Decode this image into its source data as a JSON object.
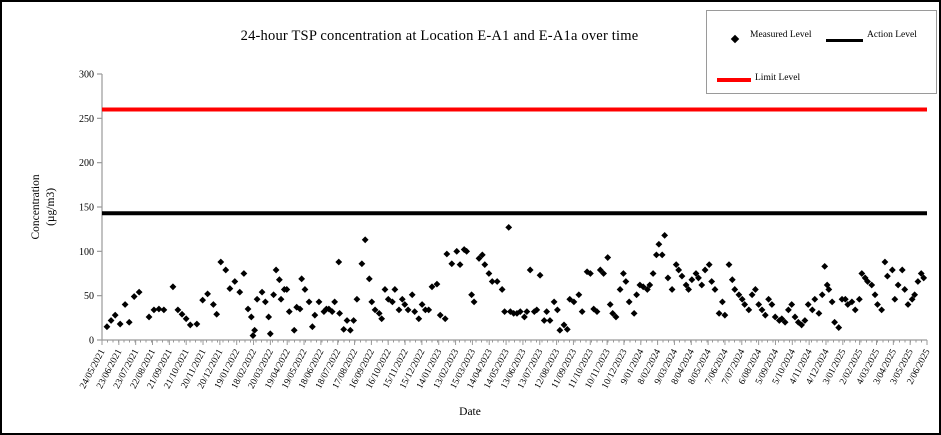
{
  "chart_data": {
    "type": "scatter",
    "title": "24-hour TSP concentration at Location E-A1 and E-A1a over time",
    "xlabel": "Date",
    "ylabel": "Concentration (µg/m3)",
    "ylabel_lines": [
      "Concentration",
      "(µg/m3)"
    ],
    "ylim": [
      0,
      300
    ],
    "yticks": [
      0,
      50,
      100,
      150,
      200,
      250,
      300
    ],
    "grid": false,
    "legend_position": "top-right",
    "axis_color": "#9a9a9a",
    "x_tick_labels": [
      "24/05/2021",
      "23/06/2021",
      "23/07/2021",
      "22/08/2021",
      "21/09/2021",
      "21/10/2021",
      "20/11/2021",
      "20/12/2021",
      "19/01/2022",
      "18/02/2022",
      "20/03/2022",
      "19/04/2022",
      "19/05/2022",
      "18/06/2022",
      "18/07/2022",
      "17/08/2022",
      "16/09/2022",
      "16/10/2022",
      "15/11/2022",
      "15/12/2022",
      "14/01/2023",
      "13/02/2023",
      "15/03/2023",
      "14/04/2023",
      "14/05/2023",
      "13/06/2023",
      "13/07/2023",
      "12/08/2023",
      "11/09/2023",
      "11/10/2023",
      "10/11/2023",
      "10/12/2023",
      "9/01/2024",
      "8/02/2024",
      "9/03/2024",
      "8/04/2024",
      "8/05/2024",
      "7/06/2024",
      "7/07/2024",
      "6/08/2024",
      "5/09/2024",
      "5/10/2024",
      "4/11/2024",
      "4/12/2024",
      "3/01/2025",
      "2/02/2025",
      "4/03/2025",
      "3/04/2025",
      "3/05/2025",
      "2/06/2025"
    ],
    "series": [
      {
        "name": "Measured Level",
        "type": "scatter",
        "marker": "diamond",
        "color": "#000000",
        "points": [
          [
            0.006,
            15
          ],
          [
            0.011,
            22
          ],
          [
            0.016,
            28
          ],
          [
            0.022,
            18
          ],
          [
            0.028,
            40
          ],
          [
            0.033,
            20
          ],
          [
            0.039,
            49
          ],
          [
            0.045,
            54
          ],
          [
            0.057,
            26
          ],
          [
            0.063,
            34
          ],
          [
            0.069,
            35
          ],
          [
            0.075,
            34
          ],
          [
            0.086,
            60
          ],
          [
            0.092,
            34
          ],
          [
            0.097,
            29
          ],
          [
            0.102,
            24
          ],
          [
            0.107,
            17
          ],
          [
            0.115,
            18
          ],
          [
            0.122,
            45
          ],
          [
            0.128,
            52
          ],
          [
            0.135,
            40
          ],
          [
            0.139,
            29
          ],
          [
            0.144,
            88
          ],
          [
            0.15,
            79
          ],
          [
            0.155,
            58
          ],
          [
            0.161,
            66
          ],
          [
            0.167,
            54
          ],
          [
            0.172,
            75
          ],
          [
            0.177,
            35
          ],
          [
            0.181,
            26
          ],
          [
            0.183,
            5
          ],
          [
            0.185,
            11
          ],
          [
            0.188,
            46
          ],
          [
            0.194,
            54
          ],
          [
            0.198,
            43
          ],
          [
            0.202,
            26
          ],
          [
            0.204,
            7
          ],
          [
            0.208,
            51
          ],
          [
            0.211,
            79
          ],
          [
            0.215,
            68
          ],
          [
            0.217,
            46
          ],
          [
            0.221,
            57
          ],
          [
            0.224,
            57
          ],
          [
            0.227,
            32
          ],
          [
            0.233,
            11
          ],
          [
            0.236,
            37
          ],
          [
            0.24,
            35
          ],
          [
            0.242,
            69
          ],
          [
            0.246,
            57
          ],
          [
            0.251,
            43
          ],
          [
            0.255,
            15
          ],
          [
            0.258,
            28
          ],
          [
            0.263,
            43
          ],
          [
            0.269,
            32
          ],
          [
            0.272,
            35
          ],
          [
            0.275,
            35
          ],
          [
            0.279,
            32
          ],
          [
            0.282,
            43
          ],
          [
            0.287,
            88
          ],
          [
            0.288,
            30
          ],
          [
            0.293,
            12
          ],
          [
            0.297,
            22
          ],
          [
            0.301,
            11
          ],
          [
            0.305,
            22
          ],
          [
            0.309,
            46
          ],
          [
            0.315,
            86
          ],
          [
            0.319,
            113
          ],
          [
            0.324,
            69
          ],
          [
            0.327,
            43
          ],
          [
            0.331,
            34
          ],
          [
            0.336,
            30
          ],
          [
            0.339,
            24
          ],
          [
            0.343,
            57
          ],
          [
            0.347,
            46
          ],
          [
            0.352,
            43
          ],
          [
            0.355,
            57
          ],
          [
            0.36,
            34
          ],
          [
            0.364,
            46
          ],
          [
            0.367,
            40
          ],
          [
            0.371,
            34
          ],
          [
            0.376,
            51
          ],
          [
            0.379,
            32
          ],
          [
            0.384,
            24
          ],
          [
            0.388,
            40
          ],
          [
            0.392,
            34
          ],
          [
            0.396,
            34
          ],
          [
            0.4,
            60
          ],
          [
            0.406,
            63
          ],
          [
            0.41,
            28
          ],
          [
            0.416,
            24
          ],
          [
            0.418,
            97
          ],
          [
            0.424,
            86
          ],
          [
            0.43,
            100
          ],
          [
            0.434,
            85
          ],
          [
            0.439,
            102
          ],
          [
            0.442,
            100
          ],
          [
            0.448,
            51
          ],
          [
            0.451,
            43
          ],
          [
            0.457,
            92
          ],
          [
            0.461,
            96
          ],
          [
            0.464,
            85
          ],
          [
            0.469,
            75
          ],
          [
            0.473,
            66
          ],
          [
            0.479,
            66
          ],
          [
            0.485,
            57
          ],
          [
            0.488,
            32
          ],
          [
            0.493,
            127
          ],
          [
            0.495,
            32
          ],
          [
            0.499,
            30
          ],
          [
            0.503,
            30
          ],
          [
            0.507,
            32
          ],
          [
            0.512,
            26
          ],
          [
            0.515,
            32
          ],
          [
            0.519,
            79
          ],
          [
            0.524,
            32
          ],
          [
            0.527,
            34
          ],
          [
            0.531,
            73
          ],
          [
            0.536,
            22
          ],
          [
            0.539,
            32
          ],
          [
            0.543,
            22
          ],
          [
            0.548,
            43
          ],
          [
            0.552,
            34
          ],
          [
            0.555,
            11
          ],
          [
            0.56,
            17
          ],
          [
            0.564,
            12
          ],
          [
            0.567,
            46
          ],
          [
            0.572,
            43
          ],
          [
            0.578,
            51
          ],
          [
            0.582,
            32
          ],
          [
            0.588,
            77
          ],
          [
            0.592,
            75
          ],
          [
            0.596,
            35
          ],
          [
            0.6,
            32
          ],
          [
            0.604,
            79
          ],
          [
            0.608,
            75
          ],
          [
            0.613,
            93
          ],
          [
            0.616,
            40
          ],
          [
            0.619,
            30
          ],
          [
            0.623,
            26
          ],
          [
            0.628,
            57
          ],
          [
            0.632,
            75
          ],
          [
            0.635,
            66
          ],
          [
            0.639,
            43
          ],
          [
            0.645,
            30
          ],
          [
            0.648,
            51
          ],
          [
            0.652,
            62
          ],
          [
            0.656,
            60
          ],
          [
            0.661,
            57
          ],
          [
            0.664,
            62
          ],
          [
            0.668,
            75
          ],
          [
            0.672,
            96
          ],
          [
            0.675,
            108
          ],
          [
            0.679,
            96
          ],
          [
            0.682,
            118
          ],
          [
            0.686,
            70
          ],
          [
            0.691,
            57
          ],
          [
            0.696,
            85
          ],
          [
            0.699,
            79
          ],
          [
            0.703,
            72
          ],
          [
            0.708,
            62
          ],
          [
            0.711,
            57
          ],
          [
            0.715,
            68
          ],
          [
            0.72,
            75
          ],
          [
            0.723,
            70
          ],
          [
            0.727,
            62
          ],
          [
            0.731,
            79
          ],
          [
            0.736,
            85
          ],
          [
            0.739,
            66
          ],
          [
            0.743,
            57
          ],
          [
            0.748,
            30
          ],
          [
            0.752,
            43
          ],
          [
            0.755,
            28
          ],
          [
            0.76,
            85
          ],
          [
            0.764,
            68
          ],
          [
            0.767,
            57
          ],
          [
            0.772,
            51
          ],
          [
            0.776,
            46
          ],
          [
            0.779,
            40
          ],
          [
            0.784,
            34
          ],
          [
            0.788,
            51
          ],
          [
            0.792,
            57
          ],
          [
            0.796,
            40
          ],
          [
            0.8,
            34
          ],
          [
            0.804,
            28
          ],
          [
            0.808,
            46
          ],
          [
            0.812,
            40
          ],
          [
            0.816,
            26
          ],
          [
            0.821,
            22
          ],
          [
            0.824,
            24
          ],
          [
            0.828,
            20
          ],
          [
            0.832,
            34
          ],
          [
            0.836,
            40
          ],
          [
            0.84,
            26
          ],
          [
            0.844,
            20
          ],
          [
            0.848,
            17
          ],
          [
            0.852,
            22
          ],
          [
            0.856,
            40
          ],
          [
            0.861,
            34
          ],
          [
            0.864,
            46
          ],
          [
            0.869,
            30
          ],
          [
            0.873,
            51
          ],
          [
            0.876,
            83
          ],
          [
            0.879,
            62
          ],
          [
            0.881,
            57
          ],
          [
            0.885,
            43
          ],
          [
            0.888,
            20
          ],
          [
            0.893,
            14
          ],
          [
            0.897,
            46
          ],
          [
            0.901,
            46
          ],
          [
            0.904,
            40
          ],
          [
            0.909,
            43
          ],
          [
            0.913,
            34
          ],
          [
            0.918,
            46
          ],
          [
            0.921,
            75
          ],
          [
            0.925,
            70
          ],
          [
            0.928,
            66
          ],
          [
            0.933,
            62
          ],
          [
            0.937,
            51
          ],
          [
            0.94,
            40
          ],
          [
            0.945,
            34
          ],
          [
            0.949,
            88
          ],
          [
            0.952,
            72
          ],
          [
            0.958,
            79
          ],
          [
            0.961,
            46
          ],
          [
            0.965,
            62
          ],
          [
            0.97,
            79
          ],
          [
            0.973,
            57
          ],
          [
            0.977,
            40
          ],
          [
            0.982,
            46
          ],
          [
            0.985,
            51
          ],
          [
            0.989,
            66
          ],
          [
            0.993,
            75
          ],
          [
            0.996,
            70
          ]
        ]
      },
      {
        "name": "Action Level",
        "type": "hline",
        "value": 143,
        "color": "#000000"
      },
      {
        "name": "Limit Level",
        "type": "hline",
        "value": 260,
        "color": "#ff0000"
      }
    ]
  }
}
